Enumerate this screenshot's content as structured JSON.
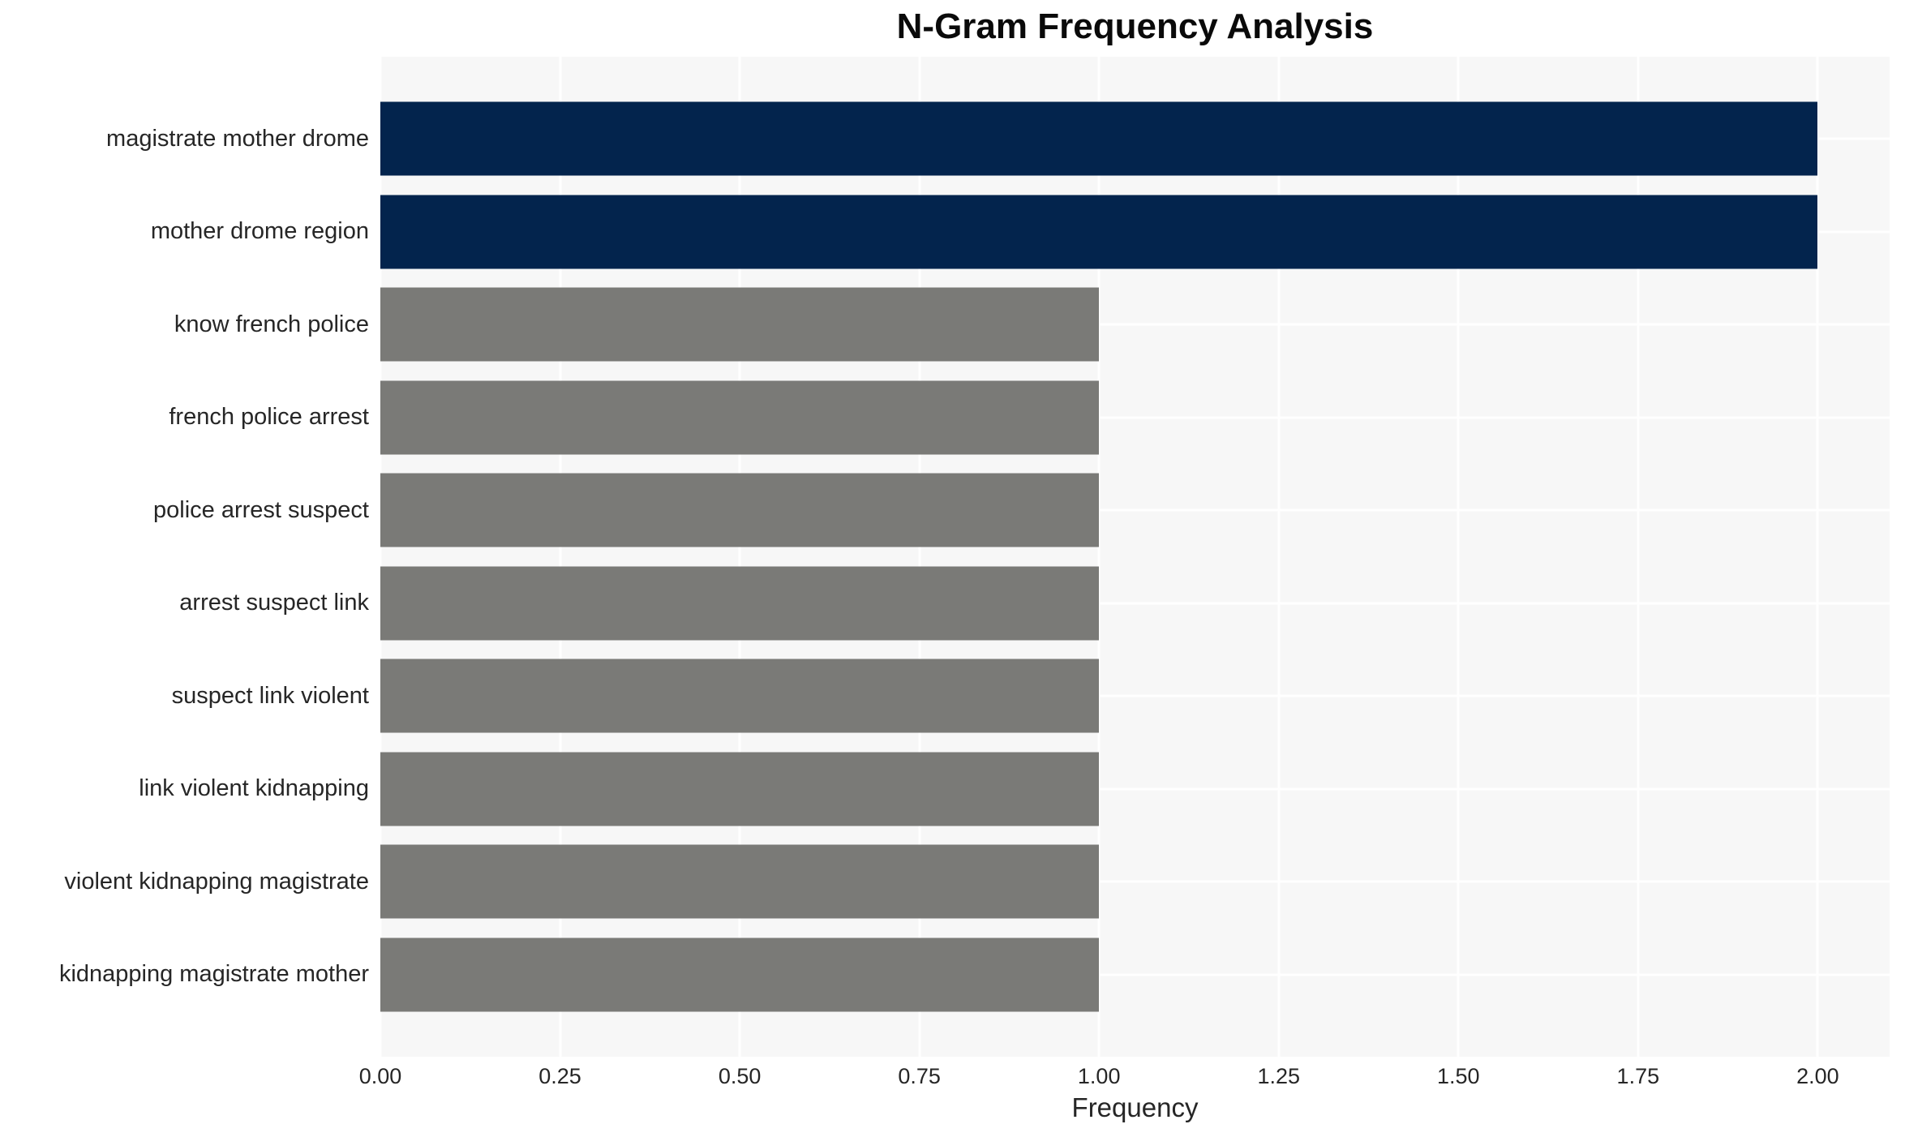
{
  "chart_data": {
    "type": "bar",
    "orientation": "horizontal",
    "title": "N-Gram Frequency Analysis",
    "xlabel": "Frequency",
    "ylabel": "",
    "categories": [
      "magistrate mother drome",
      "mother drome region",
      "know french police",
      "french police arrest",
      "police arrest suspect",
      "arrest suspect link",
      "suspect link violent",
      "link violent kidnapping",
      "violent kidnapping magistrate",
      "kidnapping magistrate mother"
    ],
    "values": [
      2,
      2,
      1,
      1,
      1,
      1,
      1,
      1,
      1,
      1
    ],
    "bar_colors": [
      "#03244d",
      "#03244d",
      "#7a7a77",
      "#7a7a77",
      "#7a7a77",
      "#7a7a77",
      "#7a7a77",
      "#7a7a77",
      "#7a7a77",
      "#7a7a77"
    ],
    "xlim": [
      0,
      2.1
    ],
    "xticks": [
      {
        "value": 0.0,
        "label": "0.00"
      },
      {
        "value": 0.25,
        "label": "0.25"
      },
      {
        "value": 0.5,
        "label": "0.50"
      },
      {
        "value": 0.75,
        "label": "0.75"
      },
      {
        "value": 1.0,
        "label": "1.00"
      },
      {
        "value": 1.25,
        "label": "1.25"
      },
      {
        "value": 1.5,
        "label": "1.50"
      },
      {
        "value": 1.75,
        "label": "1.75"
      },
      {
        "value": 2.0,
        "label": "2.00"
      }
    ],
    "grid": true,
    "legend_position": "none",
    "colors": {
      "highlight_bar": "#03244d",
      "default_bar": "#7a7a77",
      "plot_background": "#f7f7f7",
      "gridline": "#ffffff",
      "text": "#262626",
      "title": "#0a0a0a",
      "page_background": "#ffffff"
    }
  }
}
